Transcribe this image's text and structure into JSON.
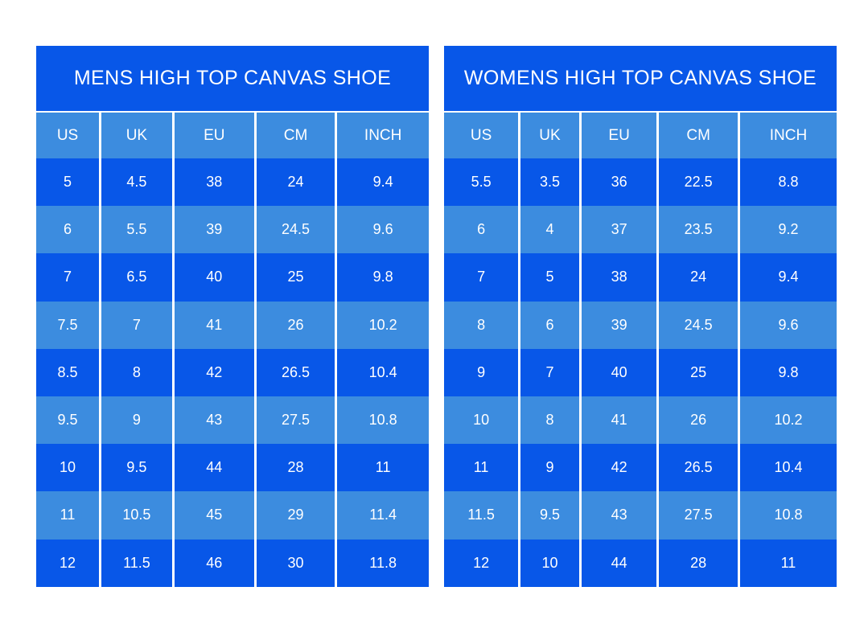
{
  "colors": {
    "dark_blue": "#0857e8",
    "light_blue": "#3c8cdf",
    "separator": "#ffffff",
    "text": "#ffffff",
    "page_background": "#ffffff"
  },
  "chart_data": [
    {
      "type": "table",
      "title": "MENS HIGH TOP CANVAS SHOE",
      "columns": [
        "US",
        "UK",
        "EU",
        "CM",
        "INCH"
      ],
      "col_widths": [
        "16.3%",
        "18.6%",
        "20.9%",
        "20.6%",
        "23.6%"
      ],
      "rows": [
        [
          "5",
          "4.5",
          "38",
          "24",
          "9.4"
        ],
        [
          "6",
          "5.5",
          "39",
          "24.5",
          "9.6"
        ],
        [
          "7",
          "6.5",
          "40",
          "25",
          "9.8"
        ],
        [
          "7.5",
          "7",
          "41",
          "26",
          "10.2"
        ],
        [
          "8.5",
          "8",
          "42",
          "26.5",
          "10.4"
        ],
        [
          "9.5",
          "9",
          "43",
          "27.5",
          "10.8"
        ],
        [
          "10",
          "9.5",
          "44",
          "28",
          "11"
        ],
        [
          "11",
          "10.5",
          "45",
          "29",
          "11.4"
        ],
        [
          "12",
          "11.5",
          "46",
          "30",
          "11.8"
        ]
      ]
    },
    {
      "type": "table",
      "title": "WOMENS HIGH TOP CANVAS SHOE",
      "columns": [
        "US",
        "UK",
        "EU",
        "CM",
        "INCH"
      ],
      "col_widths": [
        "19.2%",
        "15.5%",
        "19.8%",
        "20.6%",
        "24.9%"
      ],
      "rows": [
        [
          "5.5",
          "3.5",
          "36",
          "22.5",
          "8.8"
        ],
        [
          "6",
          "4",
          "37",
          "23.5",
          "9.2"
        ],
        [
          "7",
          "5",
          "38",
          "24",
          "9.4"
        ],
        [
          "8",
          "6",
          "39",
          "24.5",
          "9.6"
        ],
        [
          "9",
          "7",
          "40",
          "25",
          "9.8"
        ],
        [
          "10",
          "8",
          "41",
          "26",
          "10.2"
        ],
        [
          "11",
          "9",
          "42",
          "26.5",
          "10.4"
        ],
        [
          "11.5",
          "9.5",
          "43",
          "27.5",
          "10.8"
        ],
        [
          "12",
          "10",
          "44",
          "28",
          "11"
        ]
      ]
    }
  ]
}
